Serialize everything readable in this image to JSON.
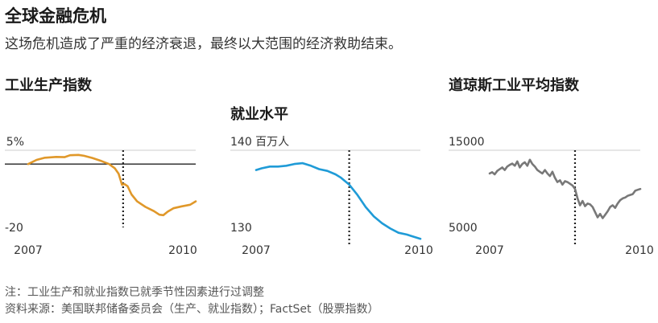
{
  "title": "全球金融危机",
  "subtitle": "这场危机造成了严重的经济衰退，最终以大范围的经济救助结束。",
  "notes": [
    "注：工业生产和就业指数已就季节性因素进行过调整",
    "资料来源：美国联邦储备委员会（生产、就业指数）；FactSet（股票指数）"
  ],
  "chart_data": [
    {
      "type": "line",
      "title": "工业生产指数",
      "color": "#e0982a",
      "xlim": [
        2007,
        2010
      ],
      "ylim": [
        -20,
        5
      ],
      "y_ticks": [
        "5%",
        "-20"
      ],
      "x_ticks": [
        "2007",
        "2010"
      ],
      "zero_line": 0,
      "crisis_marker_x": 2008.7,
      "series": [
        {
          "x": [
            2007.0,
            2007.15,
            2007.3,
            2007.5,
            2007.65,
            2007.75,
            2007.9,
            2008.0,
            2008.15,
            2008.3,
            2008.45,
            2008.55,
            2008.62,
            2008.68,
            2008.72,
            2008.78,
            2008.85,
            2008.95,
            2009.1,
            2009.25,
            2009.35,
            2009.42,
            2009.5,
            2009.6,
            2009.75,
            2009.9,
            2010.0
          ],
          "y": [
            0.0,
            1.5,
            2.3,
            2.6,
            2.5,
            3.2,
            3.3,
            3.0,
            2.2,
            1.2,
            0.0,
            -1.5,
            -3.5,
            -7.5,
            -7.2,
            -8.0,
            -11.0,
            -13.5,
            -15.5,
            -17.0,
            -18.3,
            -18.5,
            -17.2,
            -16.0,
            -15.3,
            -14.7,
            -13.5
          ]
        }
      ]
    },
    {
      "type": "line",
      "title": "就业水平",
      "color": "#1f9bd7",
      "xlim": [
        2007,
        2010
      ],
      "ylim": [
        130,
        140
      ],
      "y_ticks": [
        "140 百万人",
        "130"
      ],
      "x_ticks": [
        "2007",
        "2010"
      ],
      "crisis_marker_x": 2008.7,
      "series": [
        {
          "x": [
            2007.0,
            2007.1,
            2007.25,
            2007.4,
            2007.55,
            2007.7,
            2007.85,
            2008.0,
            2008.15,
            2008.3,
            2008.45,
            2008.55,
            2008.7,
            2008.85,
            2009.0,
            2009.15,
            2009.3,
            2009.45,
            2009.6,
            2009.75,
            2009.9,
            2010.0
          ],
          "y": [
            137.7,
            137.9,
            138.1,
            138.1,
            138.2,
            138.4,
            138.5,
            138.2,
            137.8,
            137.6,
            137.2,
            136.8,
            136.0,
            134.8,
            133.4,
            132.3,
            131.5,
            130.9,
            130.4,
            130.2,
            129.9,
            129.7
          ]
        }
      ]
    },
    {
      "type": "line",
      "title": "道琼斯工业平均指数",
      "color": "#787878",
      "xlim": [
        2007,
        2010
      ],
      "ylim": [
        5000,
        15000
      ],
      "y_ticks": [
        "15000",
        "5000"
      ],
      "x_ticks": [
        "2007",
        "2010"
      ],
      "crisis_marker_x": 2008.7,
      "series": [
        {
          "x": [
            2007.0,
            2007.05,
            2007.1,
            2007.15,
            2007.2,
            2007.25,
            2007.3,
            2007.35,
            2007.4,
            2007.45,
            2007.5,
            2007.55,
            2007.6,
            2007.65,
            2007.7,
            2007.75,
            2007.8,
            2007.85,
            2007.9,
            2007.95,
            2008.0,
            2008.05,
            2008.1,
            2008.15,
            2008.2,
            2008.25,
            2008.3,
            2008.35,
            2008.4,
            2008.45,
            2008.5,
            2008.55,
            2008.6,
            2008.65,
            2008.7,
            2008.75,
            2008.8,
            2008.85,
            2008.9,
            2008.95,
            2009.0,
            2009.05,
            2009.1,
            2009.15,
            2009.2,
            2009.25,
            2009.3,
            2009.35,
            2009.4,
            2009.45,
            2009.5,
            2009.55,
            2009.6,
            2009.65,
            2009.7,
            2009.75,
            2009.8,
            2009.85,
            2009.9,
            2009.95,
            2010.0
          ],
          "y": [
            12300,
            12450,
            12200,
            12600,
            12800,
            13000,
            12700,
            13100,
            13300,
            13450,
            13200,
            13700,
            13000,
            13400,
            13600,
            13200,
            13900,
            13400,
            13100,
            12700,
            12500,
            12300,
            12700,
            12300,
            12000,
            12500,
            11800,
            11300,
            11500,
            11000,
            11400,
            11300,
            11100,
            10900,
            10500,
            9400,
            8600,
            9100,
            8500,
            8800,
            8700,
            8400,
            7800,
            7200,
            7600,
            7100,
            7500,
            7900,
            8400,
            8600,
            8300,
            8800,
            9200,
            9400,
            9500,
            9700,
            9800,
            9900,
            10300,
            10400,
            10500
          ]
        }
      ]
    }
  ]
}
